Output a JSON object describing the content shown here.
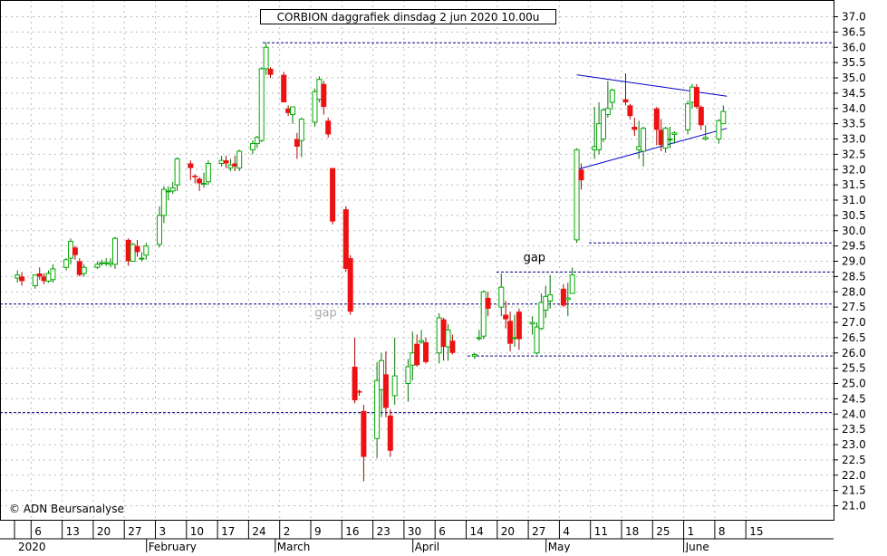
{
  "chart_data": {
    "type": "candlestick",
    "title": "CORBION daggrafiek dinsdag 2 jun 2020 10.00u",
    "copyright": "© ADN Beursanalyse",
    "ylim": [
      20.5,
      37.25
    ],
    "y_ticks": [
      "21.0",
      "21.5",
      "22.0",
      "22.5",
      "23.0",
      "23.5",
      "24.0",
      "24.5",
      "25.0",
      "25.5",
      "26.0",
      "26.5",
      "27.0",
      "27.5",
      "28.0",
      "28.5",
      "29.0",
      "29.5",
      "30.0",
      "30.5",
      "31.0",
      "31.5",
      "32.0",
      "32.5",
      "33.0",
      "33.5",
      "34.0",
      "34.5",
      "35.0",
      "35.5",
      "36.0",
      "36.5",
      "37.0"
    ],
    "x_ticks": [
      "6",
      "13",
      "20",
      "27",
      "3",
      "10",
      "17",
      "24",
      "2",
      "9",
      "16",
      "23",
      "30",
      "6",
      "14",
      "20",
      "27",
      "4",
      "11",
      "18",
      "25",
      "1",
      "8",
      "15"
    ],
    "months": [
      "2020",
      "February",
      "March",
      "April",
      "May",
      "June"
    ],
    "grid": true,
    "colors": {
      "up": "#00aa00",
      "down": "#ee1111",
      "wick_up": "#007700",
      "wick_down": "#aa0000",
      "levels": "#000080",
      "trendlines": "#0000cc",
      "grid": "#bbbbbb",
      "gap_text": "#aaaaaa"
    },
    "horizontal_levels": [
      36.15,
      29.6,
      28.65,
      27.6,
      25.9,
      24.05
    ],
    "trendlines": [
      {
        "from": [
          "2020-05-07",
          35.1
        ],
        "to": [
          "2020-06-09",
          34.4
        ]
      },
      {
        "from": [
          "2020-05-07",
          32.0
        ],
        "to": [
          "2020-06-09",
          33.35
        ]
      }
    ],
    "annotations": [
      {
        "text": "gap",
        "x": "2020-03-11",
        "y": 27.2
      },
      {
        "text": "gap",
        "x": "2020-04-27",
        "y": 29.0
      }
    ],
    "candles": [
      {
        "date": "2020-01-02",
        "o": 28.45,
        "h": 28.7,
        "l": 28.3,
        "c": 28.55
      },
      {
        "date": "2020-01-03",
        "o": 28.5,
        "h": 28.65,
        "l": 28.2,
        "c": 28.35
      },
      {
        "date": "2020-01-06",
        "o": 28.2,
        "h": 28.55,
        "l": 28.1,
        "c": 28.55
      },
      {
        "date": "2020-01-07",
        "o": 28.6,
        "h": 28.8,
        "l": 28.4,
        "c": 28.5
      },
      {
        "date": "2020-01-08",
        "o": 28.5,
        "h": 28.6,
        "l": 28.25,
        "c": 28.35
      },
      {
        "date": "2020-01-09",
        "o": 28.35,
        "h": 28.7,
        "l": 28.3,
        "c": 28.6
      },
      {
        "date": "2020-01-10",
        "o": 28.4,
        "h": 28.9,
        "l": 28.3,
        "c": 28.75
      },
      {
        "date": "2020-01-13",
        "o": 28.8,
        "h": 29.1,
        "l": 28.7,
        "c": 29.05
      },
      {
        "date": "2020-01-14",
        "o": 29.1,
        "h": 29.75,
        "l": 28.9,
        "c": 29.65
      },
      {
        "date": "2020-01-15",
        "o": 29.45,
        "h": 29.5,
        "l": 29.05,
        "c": 29.2
      },
      {
        "date": "2020-01-16",
        "o": 29.0,
        "h": 29.1,
        "l": 28.5,
        "c": 28.55
      },
      {
        "date": "2020-01-17",
        "o": 28.6,
        "h": 28.9,
        "l": 28.5,
        "c": 28.8
      },
      {
        "date": "2020-01-20",
        "o": 28.8,
        "h": 29.0,
        "l": 28.75,
        "c": 28.9
      },
      {
        "date": "2020-01-21",
        "o": 28.95,
        "h": 29.05,
        "l": 28.85,
        "c": 28.95
      },
      {
        "date": "2020-01-22",
        "o": 28.95,
        "h": 29.1,
        "l": 28.85,
        "c": 28.95
      },
      {
        "date": "2020-01-23",
        "o": 28.9,
        "h": 29.1,
        "l": 28.8,
        "c": 28.95
      },
      {
        "date": "2020-01-24",
        "o": 28.9,
        "h": 29.8,
        "l": 28.75,
        "c": 29.75
      },
      {
        "date": "2020-01-27",
        "o": 29.7,
        "h": 29.75,
        "l": 28.85,
        "c": 29.0
      },
      {
        "date": "2020-01-28",
        "o": 29.0,
        "h": 29.6,
        "l": 29.0,
        "c": 29.55
      },
      {
        "date": "2020-01-29",
        "o": 29.5,
        "h": 29.7,
        "l": 29.15,
        "c": 29.3
      },
      {
        "date": "2020-01-30",
        "o": 29.1,
        "h": 29.3,
        "l": 29.0,
        "c": 29.1
      },
      {
        "date": "2020-01-31",
        "o": 29.2,
        "h": 29.6,
        "l": 29.05,
        "c": 29.5
      },
      {
        "date": "2020-02-03",
        "o": 29.55,
        "h": 30.8,
        "l": 29.45,
        "c": 30.5
      },
      {
        "date": "2020-02-04",
        "o": 30.5,
        "h": 31.45,
        "l": 30.25,
        "c": 31.35
      },
      {
        "date": "2020-02-05",
        "o": 31.3,
        "h": 31.45,
        "l": 31.0,
        "c": 31.3
      },
      {
        "date": "2020-02-06",
        "o": 31.3,
        "h": 31.6,
        "l": 31.2,
        "c": 31.4
      },
      {
        "date": "2020-02-07",
        "o": 31.5,
        "h": 32.4,
        "l": 31.3,
        "c": 32.35
      },
      {
        "date": "2020-02-10",
        "o": 32.2,
        "h": 32.3,
        "l": 31.65,
        "c": 32.05
      },
      {
        "date": "2020-02-11",
        "o": 31.8,
        "h": 31.85,
        "l": 31.55,
        "c": 31.75
      },
      {
        "date": "2020-02-12",
        "o": 31.7,
        "h": 31.75,
        "l": 31.3,
        "c": 31.55
      },
      {
        "date": "2020-02-13",
        "o": 31.55,
        "h": 31.9,
        "l": 31.4,
        "c": 31.55
      },
      {
        "date": "2020-02-14",
        "o": 31.6,
        "h": 32.3,
        "l": 31.5,
        "c": 32.2
      },
      {
        "date": "2020-02-17",
        "o": 32.2,
        "h": 32.45,
        "l": 32.1,
        "c": 32.3
      },
      {
        "date": "2020-02-18",
        "o": 32.3,
        "h": 32.45,
        "l": 32.05,
        "c": 32.2
      },
      {
        "date": "2020-02-19",
        "o": 32.05,
        "h": 32.35,
        "l": 31.95,
        "c": 32.15
      },
      {
        "date": "2020-02-20",
        "o": 32.2,
        "h": 32.45,
        "l": 31.95,
        "c": 32.1
      },
      {
        "date": "2020-02-21",
        "o": 32.05,
        "h": 32.65,
        "l": 31.95,
        "c": 32.6
      },
      {
        "date": "2020-02-24",
        "o": 32.65,
        "h": 32.95,
        "l": 32.5,
        "c": 32.85
      },
      {
        "date": "2020-02-25",
        "o": 32.85,
        "h": 33.1,
        "l": 32.7,
        "c": 33.05
      },
      {
        "date": "2020-02-26",
        "o": 32.95,
        "h": 35.35,
        "l": 32.9,
        "c": 35.3
      },
      {
        "date": "2020-02-27",
        "o": 35.3,
        "h": 36.15,
        "l": 35.1,
        "c": 36.0
      },
      {
        "date": "2020-02-28",
        "o": 35.3,
        "h": 35.35,
        "l": 35.0,
        "c": 35.1
      },
      {
        "date": "2020-03-02",
        "o": 35.1,
        "h": 35.2,
        "l": 34.2,
        "c": 34.2
      },
      {
        "date": "2020-03-03",
        "o": 34.0,
        "h": 34.1,
        "l": 33.75,
        "c": 33.85
      },
      {
        "date": "2020-03-04",
        "o": 33.8,
        "h": 34.05,
        "l": 33.5,
        "c": 34.05
      },
      {
        "date": "2020-03-05",
        "o": 33.0,
        "h": 33.2,
        "l": 32.35,
        "c": 32.75
      },
      {
        "date": "2020-03-06",
        "o": 32.95,
        "h": 33.7,
        "l": 32.4,
        "c": 33.65
      },
      {
        "date": "2020-03-09",
        "o": 33.55,
        "h": 34.65,
        "l": 33.4,
        "c": 34.55
      },
      {
        "date": "2020-03-10",
        "o": 34.3,
        "h": 35.05,
        "l": 34.2,
        "c": 34.95
      },
      {
        "date": "2020-03-11",
        "o": 34.8,
        "h": 34.9,
        "l": 33.8,
        "c": 34.05
      },
      {
        "date": "2020-03-12",
        "o": 33.6,
        "h": 33.7,
        "l": 33.05,
        "c": 33.15
      },
      {
        "date": "2020-03-13",
        "o": 32.05,
        "h": 32.05,
        "l": 30.2,
        "c": 30.3
      },
      {
        "date": "2020-03-16",
        "o": 30.7,
        "h": 30.8,
        "l": 28.65,
        "c": 28.75
      },
      {
        "date": "2020-03-17",
        "o": 29.1,
        "h": 29.2,
        "l": 27.25,
        "c": 27.35
      },
      {
        "date": "2020-03-18",
        "o": 25.55,
        "h": 26.5,
        "l": 24.35,
        "c": 24.45
      },
      {
        "date": "2020-03-19",
        "o": 24.75,
        "h": 24.8,
        "l": 24.6,
        "c": 24.7
      },
      {
        "date": "2020-03-20",
        "o": 24.1,
        "h": 24.3,
        "l": 21.8,
        "c": 22.6
      },
      {
        "date": "2020-03-23",
        "o": 23.2,
        "h": 25.7,
        "l": 22.55,
        "c": 25.1
      },
      {
        "date": "2020-03-24",
        "o": 24.8,
        "h": 26.0,
        "l": 23.9,
        "c": 25.75
      },
      {
        "date": "2020-03-25",
        "o": 25.3,
        "h": 26.05,
        "l": 23.9,
        "c": 24.2
      },
      {
        "date": "2020-03-26",
        "o": 23.95,
        "h": 24.15,
        "l": 22.6,
        "c": 22.8
      },
      {
        "date": "2020-03-27",
        "o": 24.6,
        "h": 26.5,
        "l": 24.3,
        "c": 25.25
      },
      {
        "date": "2020-03-30",
        "o": 25.0,
        "h": 25.8,
        "l": 24.4,
        "c": 25.55
      },
      {
        "date": "2020-03-31",
        "o": 25.6,
        "h": 26.7,
        "l": 25.1,
        "c": 26.0
      },
      {
        "date": "2020-04-01",
        "o": 26.3,
        "h": 26.6,
        "l": 25.55,
        "c": 25.6
      },
      {
        "date": "2020-04-02",
        "o": 26.35,
        "h": 26.75,
        "l": 26.3,
        "c": 26.4
      },
      {
        "date": "2020-04-03",
        "o": 26.35,
        "h": 26.5,
        "l": 25.65,
        "c": 25.7
      },
      {
        "date": "2020-04-06",
        "o": 26.0,
        "h": 27.3,
        "l": 25.65,
        "c": 27.15
      },
      {
        "date": "2020-04-07",
        "o": 27.1,
        "h": 27.15,
        "l": 25.75,
        "c": 26.2
      },
      {
        "date": "2020-04-08",
        "o": 26.2,
        "h": 26.95,
        "l": 25.75,
        "c": 26.75
      },
      {
        "date": "2020-04-09",
        "o": 26.4,
        "h": 26.6,
        "l": 25.95,
        "c": 26.0
      },
      {
        "date": "2020-04-14",
        "o": 25.9,
        "h": 26.0,
        "l": 25.8,
        "c": 25.95
      },
      {
        "date": "2020-04-15",
        "o": 26.5,
        "h": 26.75,
        "l": 26.4,
        "c": 26.5
      },
      {
        "date": "2020-04-16",
        "o": 26.55,
        "h": 28.05,
        "l": 26.45,
        "c": 28.0
      },
      {
        "date": "2020-04-17",
        "o": 27.8,
        "h": 28.0,
        "l": 27.2,
        "c": 27.45
      },
      {
        "date": "2020-04-20",
        "o": 27.5,
        "h": 28.6,
        "l": 27.2,
        "c": 28.15
      },
      {
        "date": "2020-04-21",
        "o": 27.25,
        "h": 27.7,
        "l": 26.8,
        "c": 27.1
      },
      {
        "date": "2020-04-22",
        "o": 27.05,
        "h": 27.35,
        "l": 26.05,
        "c": 26.3
      },
      {
        "date": "2020-04-23",
        "o": 26.5,
        "h": 27.25,
        "l": 26.2,
        "c": 26.5
      },
      {
        "date": "2020-04-24",
        "o": 27.35,
        "h": 27.45,
        "l": 26.1,
        "c": 26.45
      },
      {
        "date": "2020-04-27",
        "o": 26.95,
        "h": 27.2,
        "l": 26.6,
        "c": 27.0
      },
      {
        "date": "2020-04-28",
        "o": 26.0,
        "h": 27.0,
        "l": 25.95,
        "c": 26.85
      },
      {
        "date": "2020-04-29",
        "o": 26.8,
        "h": 27.95,
        "l": 26.75,
        "c": 27.65
      },
      {
        "date": "2020-04-30",
        "o": 27.4,
        "h": 28.2,
        "l": 27.15,
        "c": 27.85
      },
      {
        "date": "2020-05-01",
        "o": 27.7,
        "h": 28.55,
        "l": 27.45,
        "c": 27.9
      },
      {
        "date": "2020-05-04",
        "o": 28.1,
        "h": 28.25,
        "l": 27.5,
        "c": 27.55
      },
      {
        "date": "2020-05-05",
        "o": 27.75,
        "h": 28.3,
        "l": 27.2,
        "c": 27.8
      },
      {
        "date": "2020-05-06",
        "o": 27.95,
        "h": 28.8,
        "l": 27.95,
        "c": 28.55
      },
      {
        "date": "2020-05-07",
        "o": 29.7,
        "h": 32.7,
        "l": 29.6,
        "c": 32.65
      },
      {
        "date": "2020-05-08",
        "o": 32.0,
        "h": 32.2,
        "l": 31.35,
        "c": 31.65
      },
      {
        "date": "2020-05-11",
        "o": 32.65,
        "h": 34.05,
        "l": 32.35,
        "c": 32.75
      },
      {
        "date": "2020-05-12",
        "o": 32.65,
        "h": 34.2,
        "l": 32.5,
        "c": 33.5
      },
      {
        "date": "2020-05-13",
        "o": 33.0,
        "h": 34.0,
        "l": 32.9,
        "c": 33.95
      },
      {
        "date": "2020-05-14",
        "o": 33.8,
        "h": 34.9,
        "l": 33.7,
        "c": 34.0
      },
      {
        "date": "2020-05-15",
        "o": 34.2,
        "h": 34.65,
        "l": 33.95,
        "c": 34.6
      },
      {
        "date": "2020-05-18",
        "o": 34.3,
        "h": 35.15,
        "l": 34.1,
        "c": 34.2
      },
      {
        "date": "2020-05-19",
        "o": 34.1,
        "h": 34.15,
        "l": 33.65,
        "c": 33.75
      },
      {
        "date": "2020-05-20",
        "o": 33.4,
        "h": 33.7,
        "l": 33.1,
        "c": 33.3
      },
      {
        "date": "2020-05-21",
        "o": 32.65,
        "h": 33.6,
        "l": 32.35,
        "c": 32.75
      },
      {
        "date": "2020-05-22",
        "o": 32.6,
        "h": 33.4,
        "l": 32.1,
        "c": 33.35
      },
      {
        "date": "2020-05-25",
        "o": 34.0,
        "h": 34.05,
        "l": 32.8,
        "c": 33.3
      },
      {
        "date": "2020-05-26",
        "o": 33.3,
        "h": 33.65,
        "l": 32.6,
        "c": 32.8
      },
      {
        "date": "2020-05-27",
        "o": 32.7,
        "h": 33.4,
        "l": 32.55,
        "c": 33.35
      },
      {
        "date": "2020-05-28",
        "o": 33.0,
        "h": 33.4,
        "l": 32.7,
        "c": 33.0
      },
      {
        "date": "2020-05-29",
        "o": 33.15,
        "h": 33.25,
        "l": 32.85,
        "c": 33.2
      },
      {
        "date": "2020-06-01",
        "o": 33.3,
        "h": 34.25,
        "l": 33.15,
        "c": 34.15
      },
      {
        "date": "2020-06-02",
        "o": 34.2,
        "h": 34.8,
        "l": 34.0,
        "c": 34.7
      },
      {
        "date": "2020-06-03",
        "o": 34.7,
        "h": 34.8,
        "l": 34.0,
        "c": 34.05
      },
      {
        "date": "2020-06-04",
        "o": 34.05,
        "h": 34.1,
        "l": 33.3,
        "c": 33.45
      },
      {
        "date": "2020-06-05",
        "o": 33.0,
        "h": 33.45,
        "l": 32.95,
        "c": 33.05
      },
      {
        "date": "2020-06-08",
        "o": 33.0,
        "h": 33.65,
        "l": 32.85,
        "c": 33.6
      },
      {
        "date": "2020-06-09",
        "o": 33.5,
        "h": 34.1,
        "l": 33.5,
        "c": 33.9
      }
    ]
  }
}
